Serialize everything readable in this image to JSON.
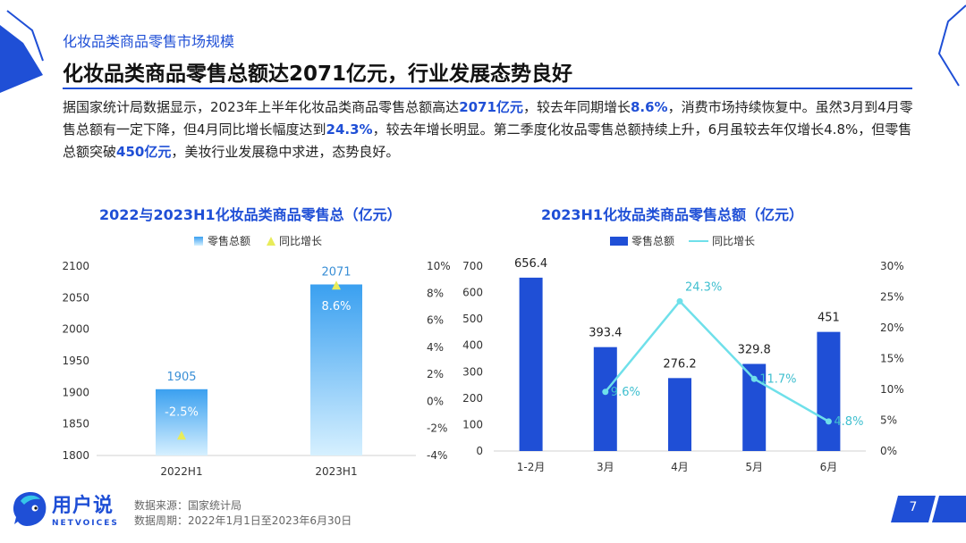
{
  "header": {
    "section_label": "化妆品类商品零售市场规模",
    "headline": "化妆品类商品零售总额达2071亿元，行业发展态势良好"
  },
  "summary": {
    "parts": [
      {
        "text": "据国家统计局数据显示，2023年上半年化妆品类商品零售总额高达",
        "hl": false
      },
      {
        "text": "2071亿元",
        "hl": true
      },
      {
        "text": "，较去年同期增长",
        "hl": false
      },
      {
        "text": "8.6%",
        "hl": true
      },
      {
        "text": "，消费市场持续恢复中。虽然3月到4月零售总额有一定下降，但4月同比增长幅度达到",
        "hl": false
      },
      {
        "text": "24.3%",
        "hl": true
      },
      {
        "text": "，较去年增长明显。第二季度化妆品零售总额持续上升，6月虽较去年仅增长4.8%，但零售总额突破",
        "hl": false
      },
      {
        "text": "450亿元",
        "hl": true
      },
      {
        "text": "，美妆行业发展稳中求进，态势良好。",
        "hl": false
      }
    ]
  },
  "chart_data": [
    {
      "type": "bar",
      "title": "2022与2023H1化妆品类商品零售总（亿元）",
      "categories": [
        "2022H1",
        "2023H1"
      ],
      "series": [
        {
          "name": "零售总额",
          "values": [
            1905,
            2071
          ],
          "labels": [
            "1905",
            "2071"
          ],
          "axis": "left",
          "color": "#3aa0f0"
        },
        {
          "name": "同比增长",
          "values": [
            -2.5,
            8.6
          ],
          "labels": [
            "-2.5%",
            "8.6%"
          ],
          "axis": "right",
          "marker": "triangle",
          "color": "#e8ec5a"
        }
      ],
      "y_left": {
        "min": 1800,
        "max": 2100,
        "ticks": [
          "1800",
          "1850",
          "1900",
          "1950",
          "2000",
          "2050",
          "2100"
        ]
      },
      "y_right": {
        "min": -4,
        "max": 10,
        "ticks": [
          "-4%",
          "-2%",
          "0%",
          "2%",
          "4%",
          "6%",
          "8%",
          "10%"
        ]
      },
      "legend_position": "top-center",
      "grid": false
    },
    {
      "type": "bar",
      "title": "2023H1化妆品类商品零售总额（亿元）",
      "categories": [
        "1-2月",
        "3月",
        "4月",
        "5月",
        "6月"
      ],
      "series": [
        {
          "name": "零售总额",
          "values": [
            656.4,
            393.4,
            276.2,
            329.8,
            451
          ],
          "labels": [
            "656.4",
            "393.4",
            "276.2",
            "329.8",
            "451"
          ],
          "axis": "left",
          "color": "#1f4fd6"
        },
        {
          "name": "同比增长",
          "type": "line",
          "values": [
            null,
            9.6,
            24.3,
            11.7,
            4.8
          ],
          "labels": [
            "",
            "9.6%",
            "24.3%",
            "11.7%",
            "4.8%"
          ],
          "axis": "right",
          "color": "#6fe0ea"
        }
      ],
      "y_left": {
        "min": 0,
        "max": 700,
        "ticks": [
          "0",
          "100",
          "200",
          "300",
          "400",
          "500",
          "600",
          "700"
        ]
      },
      "y_right": {
        "min": 0,
        "max": 30,
        "ticks": [
          "0%",
          "5%",
          "10%",
          "15%",
          "20%",
          "25%",
          "30%"
        ]
      },
      "legend_position": "top-center",
      "grid": false
    }
  ],
  "footer": {
    "logo_cn": "用户说",
    "logo_en": "NETVOICES",
    "source_line1": "数据来源：国家统计局",
    "source_line2": "数据周期：2022年1月1日至2023年6月30日",
    "page_number": "7"
  },
  "colors": {
    "accent": "#1f4fd6",
    "bar_light": "#3aa0f0",
    "line": "#6fe0ea",
    "marker": "#e8ec5a"
  }
}
